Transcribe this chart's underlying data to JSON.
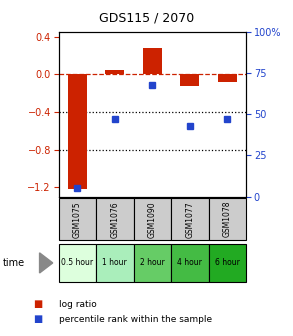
{
  "title": "GDS115 / 2070",
  "samples": [
    "GSM1075",
    "GSM1076",
    "GSM1090",
    "GSM1077",
    "GSM1078"
  ],
  "time_labels": [
    "0.5 hour",
    "1 hour",
    "2 hour",
    "4 hour",
    "6 hour"
  ],
  "time_colors": [
    "#ddffdd",
    "#aaeebb",
    "#66cc66",
    "#44bb44",
    "#22aa22"
  ],
  "log_ratio": [
    -1.22,
    0.04,
    0.28,
    -0.12,
    -0.08
  ],
  "percentile": [
    5,
    47,
    68,
    43,
    47
  ],
  "bar_color": "#cc2200",
  "dot_color": "#2244cc",
  "ylim_left": [
    -1.3,
    0.45
  ],
  "ylim_right": [
    0,
    100
  ],
  "yticks_left": [
    0.4,
    0.0,
    -0.4,
    -0.8,
    -1.2
  ],
  "yticks_right": [
    100,
    75,
    50,
    25,
    0
  ],
  "bg_color": "#ffffff",
  "plot_bg": "#ffffff",
  "sample_bg": "#cccccc",
  "legend_log_ratio": "log ratio",
  "legend_percentile": "percentile rank within the sample"
}
